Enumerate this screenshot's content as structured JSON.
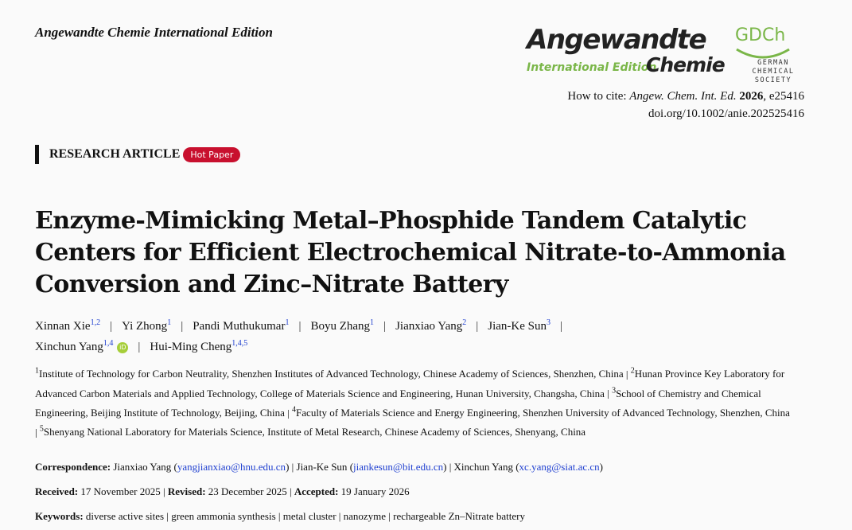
{
  "journal": "Angewandte Chemie International Edition",
  "logo": {
    "angewandte": "Angewandte",
    "intl": "International Edition",
    "chemie": "Chemie",
    "gdch": "GDCh",
    "society_line1": "German",
    "society_line2": "Chemical Society",
    "accent": "#7ab648"
  },
  "cite": {
    "prefix": "How to cite: ",
    "journal": "Angew. Chem. Int. Ed.",
    "year": "2026",
    "article": ", e25416",
    "doi": "doi.org/10.1002/anie.202525416"
  },
  "article_type": "RESEARCH ARTICLE",
  "badge": "Hot Paper",
  "badge_color": "#c8102e",
  "title": "Enzyme-Mimicking Metal–Phosphide Tandem Catalytic Centers for Efficient Electrochemical Nitrate-to-Ammonia Conversion and Zinc–Nitrate Battery",
  "authors": [
    {
      "name": "Xinnan Xie",
      "aff": "1,2"
    },
    {
      "name": "Yi Zhong",
      "aff": "1"
    },
    {
      "name": "Pandi Muthukumar",
      "aff": "1"
    },
    {
      "name": "Boyu Zhang",
      "aff": "1"
    },
    {
      "name": "Jianxiao Yang",
      "aff": "2"
    },
    {
      "name": "Jian-Ke Sun",
      "aff": "3"
    },
    {
      "name": "Xinchun Yang",
      "aff": "1,4"
    },
    {
      "name": "Hui-Ming Cheng",
      "aff": "1,4,5"
    }
  ],
  "orcid_label": "iD",
  "affiliations": [
    {
      "n": "1",
      "text": "Institute of Technology for Carbon Neutrality, Shenzhen Institutes of Advanced Technology, Chinese Academy of Sciences, Shenzhen, China"
    },
    {
      "n": "2",
      "text": "Hunan Province Key Laboratory for Advanced Carbon Materials and Applied Technology, College of Materials Science and Engineering, Hunan University, Changsha, China"
    },
    {
      "n": "3",
      "text": "School of Chemistry and Chemical Engineering, Beijing Institute of Technology, Beijing, China"
    },
    {
      "n": "4",
      "text": "Faculty of Materials Science and Energy Engineering, Shenzhen University of Advanced Technology, Shenzhen, China"
    },
    {
      "n": "5",
      "text": "Shenyang National Laboratory for Materials Science, Institute of Metal Research, Chinese Academy of Sciences, Shenyang, China"
    }
  ],
  "correspondence": {
    "label": "Correspondence:",
    "items": [
      {
        "name": "Jianxiao Yang",
        "email": "yangjianxiao@hnu.edu.cn"
      },
      {
        "name": "Jian-Ke Sun",
        "email": "jiankesun@bit.edu.cn"
      },
      {
        "name": "Xinchun Yang",
        "email": "xc.yang@siat.ac.cn"
      }
    ]
  },
  "dates": [
    {
      "label": "Received:",
      "value": "17 November 2025"
    },
    {
      "label": "Revised:",
      "value": "23 December 2025"
    },
    {
      "label": "Accepted:",
      "value": "19 January 2026"
    }
  ],
  "keywords": {
    "label": "Keywords:",
    "items": [
      "diverse active sites",
      "green ammonia synthesis",
      "metal cluster",
      "nanozyme",
      "rechargeable Zn–Nitrate battery"
    ]
  }
}
